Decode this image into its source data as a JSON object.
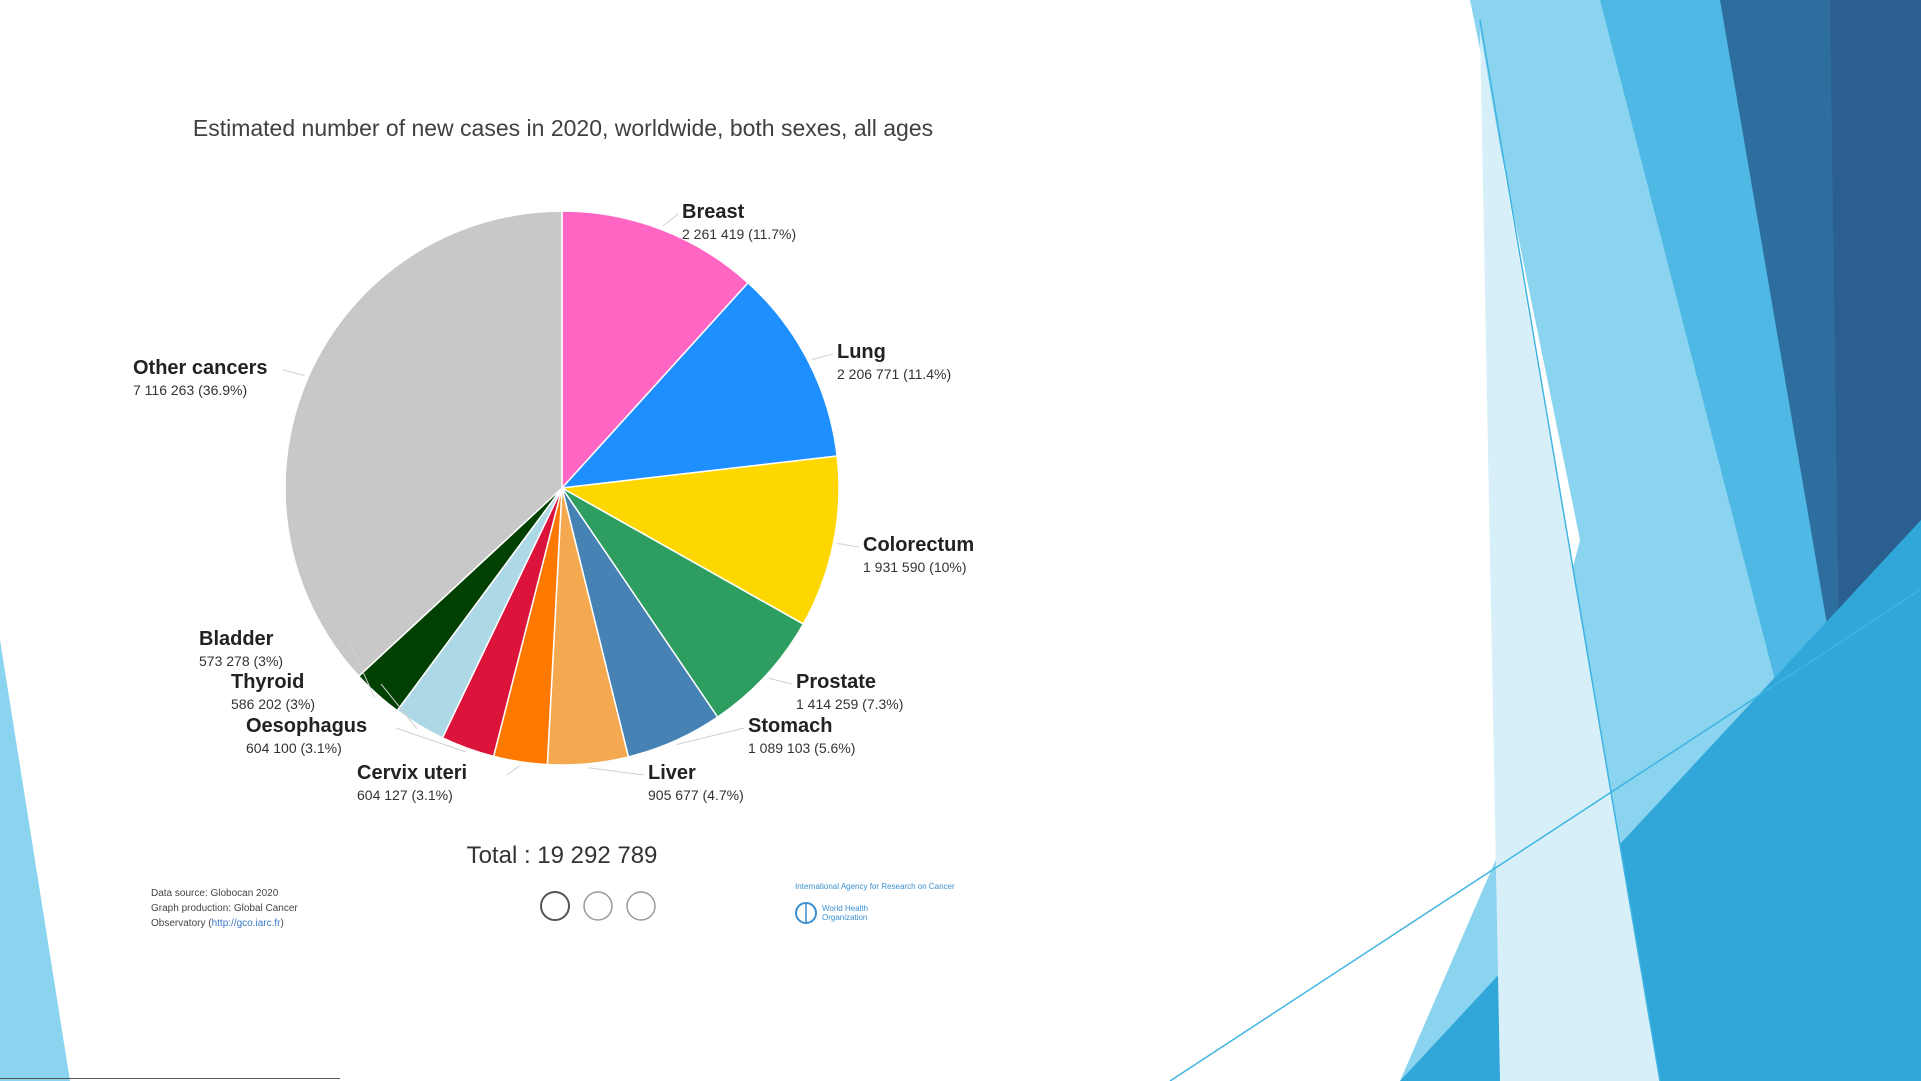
{
  "colors": {
    "deco_light": "#8ad4f0",
    "deco_mid": "#4fb8e4",
    "deco_dark": "#2e6e9e",
    "deco_navy": "#2a5f8f"
  },
  "chart_data": {
    "type": "pie",
    "title": "Estimated number of new cases in 2020, worldwide, both sexes, all ages",
    "total_label": "Total : 19 292 789",
    "slices": [
      {
        "name": "Breast",
        "value": 2261419,
        "value_label": "2 261 419 (11.7%)",
        "color": "#ff66c4"
      },
      {
        "name": "Lung",
        "value": 2206771,
        "value_label": "2 206 771 (11.4%)",
        "color": "#1e8fff"
      },
      {
        "name": "Colorectum",
        "value": 1931590,
        "value_label": "1 931 590 (10%)",
        "color": "#ffd700"
      },
      {
        "name": "Prostate",
        "value": 1414259,
        "value_label": "1 414 259 (7.3%)",
        "color": "#2e9e60"
      },
      {
        "name": "Stomach",
        "value": 1089103,
        "value_label": "1 089 103 (5.6%)",
        "color": "#4682b4"
      },
      {
        "name": "Liver",
        "value": 905677,
        "value_label": "905 677 (4.7%)",
        "color": "#f4a950"
      },
      {
        "name": "Cervix uteri",
        "value": 604127,
        "value_label": "604 127 (3.1%)",
        "color": "#ff7800"
      },
      {
        "name": "Oesophagus",
        "value": 604100,
        "value_label": "604 100 (3.1%)",
        "color": "#dc143c"
      },
      {
        "name": "Thyroid",
        "value": 586202,
        "value_label": "586 202 (3%)",
        "color": "#add8e6"
      },
      {
        "name": "Bladder",
        "value": 573278,
        "value_label": "573 278 (3%)",
        "color": "#004000"
      },
      {
        "name": "Other cancers",
        "value": 7116263,
        "value_label": "7 116 263 (36.9%)",
        "color": "#c8c8c8"
      }
    ]
  },
  "source": {
    "line1": "Data source: Globocan 2020",
    "line2": "Graph production: Global Cancer",
    "line3_prefix": "Observatory (",
    "line3_link": "http://gco.iarc.fr",
    "line3_suffix": ")"
  },
  "logo": {
    "agency": "International Agency for Research on Cancer",
    "who_line1": "World Health",
    "who_line2": "Organization"
  }
}
